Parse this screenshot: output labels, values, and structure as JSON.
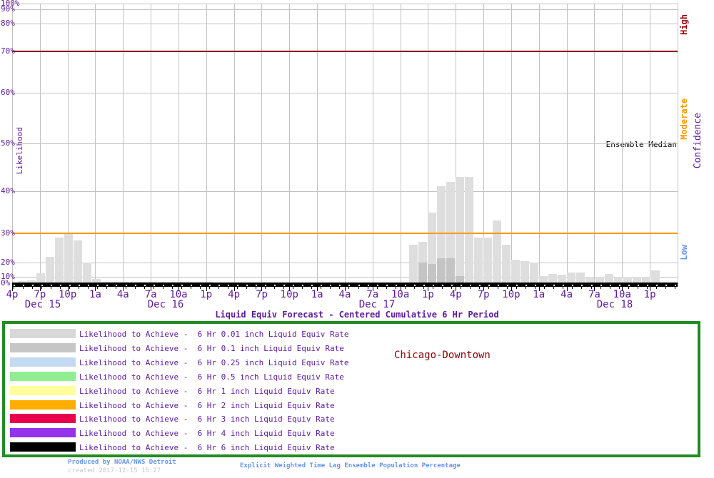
{
  "title": "Liquid Equiv Forecast - Centered Cumulative 6 Hr Period",
  "location": "Chicago-Downtown",
  "y_axis": {
    "label": "Likelihood",
    "tick_labels": [
      "100%",
      "90%",
      "80%",
      "70%",
      "60%",
      "50%",
      "40%",
      "30%",
      "20%",
      "10%",
      "0%"
    ]
  },
  "right_axis": {
    "label": "Confidence",
    "levels": [
      {
        "label": "High",
        "color": "#990000"
      },
      {
        "label": "Moderate",
        "color": "#ff9900"
      },
      {
        "label": "Low",
        "color": "#6495ed"
      }
    ]
  },
  "ensemble_median_label": "Ensemble Median",
  "chart_data": {
    "type": "bar",
    "title": "Liquid Equiv Forecast - Centered Cumulative 6 Hr Period",
    "ylabel": "Likelihood",
    "ylabel_right": "Confidence",
    "y_scale": "nonlinear probability scale, compressed near 0% and 100%",
    "y_ticks_percent": [
      0,
      10,
      20,
      30,
      40,
      50,
      60,
      70,
      80,
      90,
      100
    ],
    "x_span": "hourly bars from ~3pm Dec 15 to ~2pm Dec 18",
    "x_tick_labels": [
      "4p",
      "7p",
      "10p",
      "1a",
      "4a",
      "7a",
      "10a",
      "1p",
      "4p",
      "7p",
      "10p",
      "1a",
      "4a",
      "7a",
      "10a",
      "1p",
      "4p",
      "7p",
      "10p",
      "1a",
      "4a",
      "7a",
      "10a",
      "1p"
    ],
    "x_date_labels": [
      "Dec 15",
      "Dec 16",
      "Dec 17",
      "Dec 18"
    ],
    "reference_lines": [
      {
        "value": 70,
        "color": "#8b0000"
      },
      {
        "value": 30,
        "color": "#ff9900"
      }
    ],
    "grid": true,
    "series": [
      {
        "name": "Likelihood to Achieve -  6 Hr 0.01 inch Liquid Equiv Rate",
        "color": "#dedede",
        "values": [
          3,
          4,
          12.5,
          22,
          28.5,
          30,
          27.5,
          20,
          7,
          2,
          2,
          2,
          2,
          2,
          2,
          2,
          2,
          2,
          2,
          2,
          2,
          0,
          0,
          0,
          0,
          0,
          0,
          0,
          0,
          0,
          0,
          0,
          0,
          0,
          0,
          0,
          0,
          0,
          0,
          0,
          0,
          0,
          26,
          27,
          35,
          41,
          42,
          43,
          43,
          28.5,
          28.5,
          33,
          26,
          21,
          20.5,
          20,
          10.5,
          12,
          11.5,
          13,
          13,
          10,
          10,
          12,
          10,
          10,
          10,
          10,
          14.5
        ]
      },
      {
        "name": "Likelihood to Achieve -  6 Hr 0.1 inch Liquid Equiv Rate",
        "color": "#c4c4c4",
        "values": [
          0,
          0,
          0,
          0,
          0,
          0,
          0,
          0,
          0,
          0,
          0,
          0,
          0,
          0,
          0,
          0,
          0,
          0,
          0,
          0,
          0,
          0,
          0,
          0,
          0,
          0,
          0,
          0,
          0,
          0,
          0,
          0,
          0,
          0,
          0,
          0,
          0,
          0,
          0,
          0,
          0,
          0,
          0,
          20,
          19,
          21.5,
          21.5,
          10.5,
          0,
          0,
          0,
          0,
          0,
          0,
          0,
          0,
          0,
          0,
          0,
          0,
          0,
          0,
          0,
          0,
          0,
          0,
          0,
          0,
          0
        ]
      }
    ],
    "ensemble_median": {
      "label": "Ensemble Median",
      "color": "#000000",
      "appearance": "flat thick black line along 0% baseline"
    }
  },
  "legend": {
    "items": [
      {
        "color": "#d8d8d8",
        "label": "Likelihood to Achieve -  6 Hr 0.01 inch Liquid Equiv Rate"
      },
      {
        "color": "#c6c6c6",
        "label": "Likelihood to Achieve -  6 Hr 0.1 inch Liquid Equiv Rate"
      },
      {
        "color": "#c4d9f2",
        "label": "Likelihood to Achieve -  6 Hr 0.25 inch Liquid Equiv Rate"
      },
      {
        "color": "#90ee90",
        "label": "Likelihood to Achieve -  6 Hr 0.5 inch Liquid Equiv Rate"
      },
      {
        "color": "#ffff9c",
        "label": "Likelihood to Achieve -  6 Hr 1 inch Liquid Equiv Rate"
      },
      {
        "color": "#ffad00",
        "label": "Likelihood to Achieve -  6 Hr 2 inch Liquid Equiv Rate"
      },
      {
        "color": "#e8004c",
        "label": "Likelihood to Achieve -  6 Hr 3 inch Liquid Equiv Rate"
      },
      {
        "color": "#9632ec",
        "label": "Likelihood to Achieve -  6 Hr 4 inch Liquid Equiv Rate"
      },
      {
        "color": "#000000",
        "label": "Likelihood to Achieve -  6 Hr 6 inch Liquid Equiv Rate"
      }
    ]
  },
  "footer": {
    "produced_by": "Produced by NOAA/NWS Detroit",
    "created": "created 2017-12-15 15:27",
    "method": "Explicit Weighted Time Lag Ensemble Population Percentage"
  }
}
